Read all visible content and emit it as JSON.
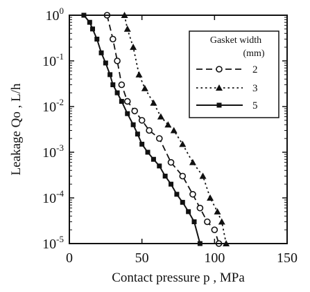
{
  "chart_data": {
    "type": "line",
    "xlabel": "Contact pressure  p  , MPa",
    "ylabel": "Leakage  Qo ,  L/h",
    "xlim": [
      0,
      150
    ],
    "ylim": [
      1e-05,
      1
    ],
    "y_scale": "log",
    "x_ticks": [
      {
        "value": 0,
        "label": "0"
      },
      {
        "value": 50,
        "label": "50"
      },
      {
        "value": 100,
        "label": "100"
      },
      {
        "value": 150,
        "label": "150"
      }
    ],
    "y_ticks": [
      {
        "value": 1,
        "base": "10",
        "exp": "0"
      },
      {
        "value": 0.1,
        "base": "10",
        "exp": "-1"
      },
      {
        "value": 0.01,
        "base": "10",
        "exp": "-2"
      },
      {
        "value": 0.001,
        "base": "10",
        "exp": "-3"
      },
      {
        "value": 0.0001,
        "base": "10",
        "exp": "-4"
      },
      {
        "value": 1e-05,
        "base": "10",
        "exp": "-5"
      }
    ],
    "legend": {
      "title_line1": "Gasket width",
      "title_line2": "(mm)",
      "placement": "top-right"
    },
    "series": [
      {
        "name": "2",
        "marker": "open-circle",
        "line_style": "dashed",
        "color": "#111111",
        "x": [
          26,
          30,
          33,
          36,
          40,
          45,
          50,
          55,
          62,
          70,
          78,
          85,
          90,
          95,
          100,
          103
        ],
        "y": [
          1.0,
          0.3,
          0.1,
          0.03,
          0.013,
          0.008,
          0.005,
          0.003,
          0.002,
          0.0006,
          0.0003,
          0.00012,
          6e-05,
          3e-05,
          2e-05,
          1e-05
        ]
      },
      {
        "name": "3",
        "marker": "filled-triangle",
        "line_style": "dotted",
        "color": "#111111",
        "x": [
          38,
          40,
          44,
          48,
          52,
          58,
          63,
          68,
          72,
          78,
          85,
          92,
          97,
          102,
          105,
          108
        ],
        "y": [
          1.0,
          0.5,
          0.2,
          0.05,
          0.025,
          0.012,
          0.006,
          0.004,
          0.003,
          0.0015,
          0.0006,
          0.0003,
          0.0001,
          5e-05,
          3e-05,
          1e-05
        ]
      },
      {
        "name": "5",
        "marker": "filled-square",
        "line_style": "solid",
        "color": "#111111",
        "x": [
          10,
          14,
          16,
          19,
          22,
          25,
          28,
          30,
          33,
          36,
          40,
          44,
          47,
          50,
          54,
          58,
          62,
          66,
          70,
          74,
          78,
          82,
          86,
          90
        ],
        "y": [
          1.0,
          0.7,
          0.5,
          0.3,
          0.15,
          0.09,
          0.05,
          0.03,
          0.02,
          0.013,
          0.007,
          0.004,
          0.0025,
          0.0015,
          0.001,
          0.0007,
          0.0005,
          0.0003,
          0.0002,
          0.00012,
          8e-05,
          5e-05,
          3e-05,
          1e-05
        ]
      }
    ]
  }
}
